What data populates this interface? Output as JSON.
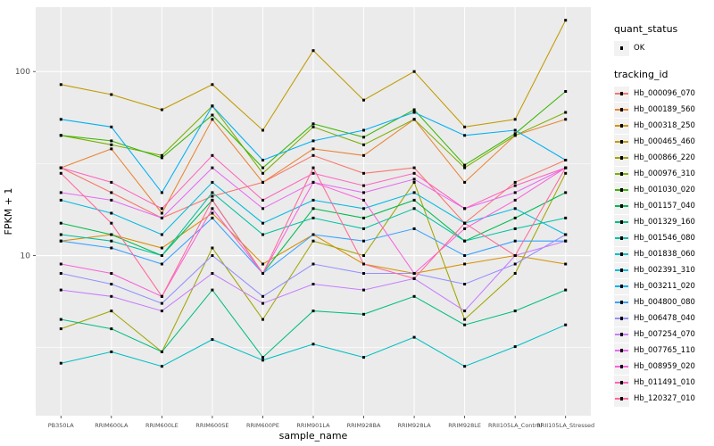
{
  "figure": {
    "x_axis_title": "sample_name",
    "y_axis_title": "FPKM + 1"
  },
  "legend": {
    "quant_status_title": "quant_status",
    "quant_status_value": "OK",
    "tracking_id_title": "tracking_id"
  },
  "chart_data": {
    "type": "line",
    "title": "",
    "xlabel": "sample_name",
    "ylabel": "FPKM + 1",
    "y_scale": "log10",
    "y_ticks": [
      100,
      10
    ],
    "y_minor_ticks": [
      3.162,
      31.62
    ],
    "y_domain_log10": [
      0.13,
      2.35
    ],
    "grid": "on",
    "legend_position": "right",
    "panel_background": "#EBEBEB",
    "grid_color": "#FFFFFF",
    "point_color": "#000000",
    "tick_label_color": "#4D4D4D",
    "quant_status": "OK",
    "categories": [
      "PB350LA",
      "RRIM600LA",
      "RRIM600LE",
      "RRIM600SE",
      "RRIM600PE",
      "RRIM901LA",
      "RRIM928BA",
      "RRIM928LA",
      "RRIM928LE",
      "RRII105LA_Control",
      "RRII105LA_Stressed"
    ],
    "series": [
      {
        "name": "Hb_000096_070",
        "color": "#F8766D",
        "values": [
          30,
          22,
          16,
          21,
          25,
          35,
          28,
          30,
          15,
          25,
          33
        ]
      },
      {
        "name": "Hb_000189_560",
        "color": "#EA8331",
        "values": [
          30,
          38,
          17,
          55,
          25,
          38,
          35,
          55,
          25,
          45,
          55
        ]
      },
      {
        "name": "Hb_000318_250",
        "color": "#D89000",
        "values": [
          12,
          13,
          11,
          17,
          9,
          13,
          9,
          8,
          9,
          10,
          9
        ]
      },
      {
        "name": "Hb_000465_460",
        "color": "#C09B00",
        "values": [
          85,
          75,
          62,
          85,
          48,
          130,
          70,
          100,
          50,
          55,
          190
        ]
      },
      {
        "name": "Hb_000866_220",
        "color": "#A3A500",
        "values": [
          4,
          5,
          3,
          11,
          4.5,
          12,
          10,
          25,
          4.5,
          8,
          28
        ]
      },
      {
        "name": "Hb_000976_310",
        "color": "#7CAE00",
        "values": [
          45,
          40,
          35,
          65,
          28,
          50,
          40,
          55,
          30,
          45,
          60
        ]
      },
      {
        "name": "Hb_001030_020",
        "color": "#39B600",
        "values": [
          45,
          42,
          34,
          58,
          30,
          52,
          44,
          62,
          31,
          46,
          78
        ]
      },
      {
        "name": "Hb_001157_040",
        "color": "#00BB4E",
        "values": [
          15,
          13,
          10,
          20,
          8,
          18,
          16,
          20,
          12,
          16,
          22
        ]
      },
      {
        "name": "Hb_001329_160",
        "color": "#00BF7D",
        "values": [
          4.5,
          4,
          3,
          6.5,
          2.8,
          5,
          4.8,
          6,
          4.2,
          5,
          6.5
        ]
      },
      {
        "name": "Hb_001546_080",
        "color": "#00C1A3",
        "values": [
          13,
          12,
          10,
          22,
          13,
          16,
          14,
          18,
          12,
          14,
          16
        ]
      },
      {
        "name": "Hb_001838_060",
        "color": "#00BFC4",
        "values": [
          2.6,
          3,
          2.5,
          3.5,
          2.7,
          3.3,
          2.8,
          3.6,
          2.5,
          3.2,
          4.2
        ]
      },
      {
        "name": "Hb_002391_310",
        "color": "#00BAE0",
        "values": [
          20,
          17,
          13,
          25,
          15,
          20,
          18,
          22,
          15,
          18,
          13
        ]
      },
      {
        "name": "Hb_003211_020",
        "color": "#00B0F6",
        "values": [
          55,
          50,
          22,
          65,
          33,
          42,
          48,
          60,
          45,
          48,
          33
        ]
      },
      {
        "name": "Hb_004800_080",
        "color": "#35A2FF",
        "values": [
          12,
          11,
          9,
          16,
          8,
          13,
          12,
          14,
          10,
          12,
          12
        ]
      },
      {
        "name": "Hb_006478_040",
        "color": "#9590FF",
        "values": [
          8,
          7,
          5.5,
          10,
          6,
          9,
          8,
          8,
          7,
          9,
          13
        ]
      },
      {
        "name": "Hb_007254_070",
        "color": "#C77CFF",
        "values": [
          6.5,
          6,
          5,
          8,
          5.5,
          7,
          6.5,
          7.5,
          5,
          10,
          12
        ]
      },
      {
        "name": "Hb_007765_110",
        "color": "#E76BF3",
        "values": [
          22,
          20,
          16,
          30,
          18,
          25,
          22,
          26,
          18,
          22,
          30
        ]
      },
      {
        "name": "Hb_008959_020",
        "color": "#FA62DB",
        "values": [
          9,
          8,
          6,
          18,
          8,
          25,
          20,
          8,
          14,
          20,
          30
        ]
      },
      {
        "name": "Hb_011491_010",
        "color": "#FF62BC",
        "values": [
          30,
          25,
          18,
          35,
          20,
          28,
          24,
          28,
          18,
          24,
          30
        ]
      },
      {
        "name": "Hb_120327_010",
        "color": "#FF6A98",
        "values": [
          28,
          15,
          6,
          20,
          8,
          30,
          9,
          7.5,
          15,
          10,
          30
        ]
      }
    ]
  }
}
